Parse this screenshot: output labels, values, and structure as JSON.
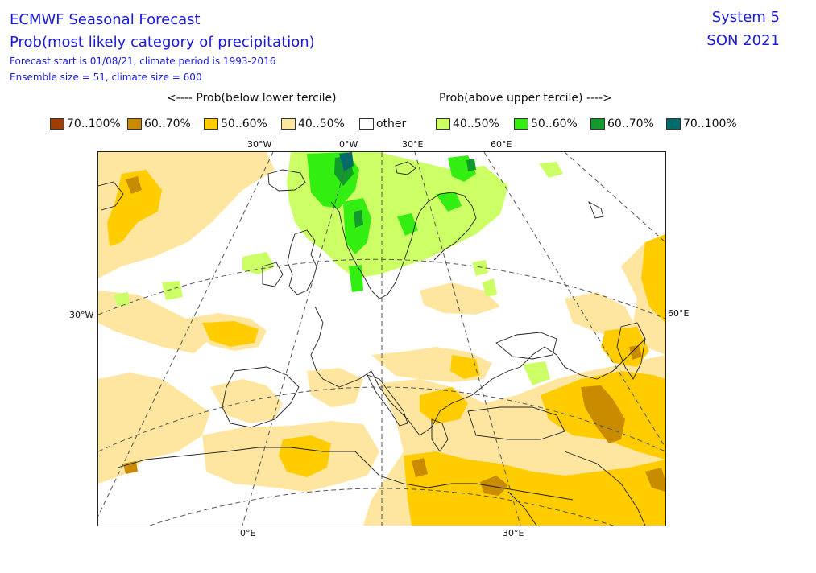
{
  "header": {
    "title": "ECMWF Seasonal Forecast",
    "subtitle": "Prob(most likely category of precipitation)",
    "line3": "Forecast start is 01/08/21, climate period is 1993-2016",
    "line4": "Ensemble size = 51, climate size = 600",
    "system": "System 5",
    "season": "SON 2021"
  },
  "legend": {
    "below_header": "<---- Prob(below lower tercile)",
    "above_header": "Prob(above upper tercile) ---->",
    "items": [
      {
        "label": "70..100%",
        "color": "#a13b00"
      },
      {
        "label": "60..70%",
        "color": "#c98b00"
      },
      {
        "label": "50..60%",
        "color": "#ffcc00"
      },
      {
        "label": "40..50%",
        "color": "#ffe6a0"
      },
      {
        "label": "other",
        "color": "#ffffff"
      },
      {
        "label": "40..50%",
        "color": "#ccff66"
      },
      {
        "label": "50..60%",
        "color": "#33ee11"
      },
      {
        "label": "60..70%",
        "color": "#129a2c"
      },
      {
        "label": "70..100%",
        "color": "#006b6b"
      }
    ]
  },
  "axis_labels": {
    "top": [
      "30°W",
      "0°W",
      "30°E",
      "60°E"
    ],
    "bottom": [
      "0°E",
      "30°E"
    ],
    "left": "30°W",
    "right": "60°E"
  }
}
